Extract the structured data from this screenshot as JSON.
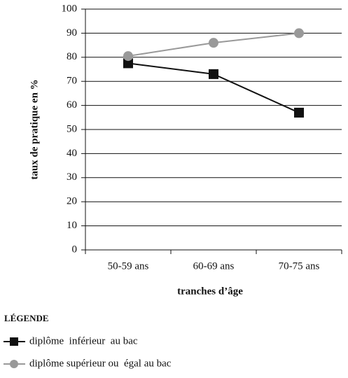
{
  "chart_data": {
    "type": "line",
    "categories": [
      "50-59 ans",
      "60-69 ans",
      "70-75 ans"
    ],
    "series": [
      {
        "name": "diplôme  inférieur  au bac",
        "color": "#111111",
        "marker": "square",
        "values": [
          77.5,
          73,
          57
        ]
      },
      {
        "name": "diplôme supérieur ou  égal au bac",
        "color": "#999999",
        "marker": "circle",
        "values": [
          80.5,
          86,
          90
        ]
      }
    ],
    "y_label": "taux de pratique en %",
    "x_label": "tranches d’âge",
    "legend_title": "LÉGENDE",
    "ylim": [
      0,
      100
    ],
    "yticks": [
      0,
      10,
      20,
      30,
      40,
      50,
      60,
      70,
      80,
      90,
      100
    ],
    "grid": true,
    "legend": "bottom-left"
  }
}
